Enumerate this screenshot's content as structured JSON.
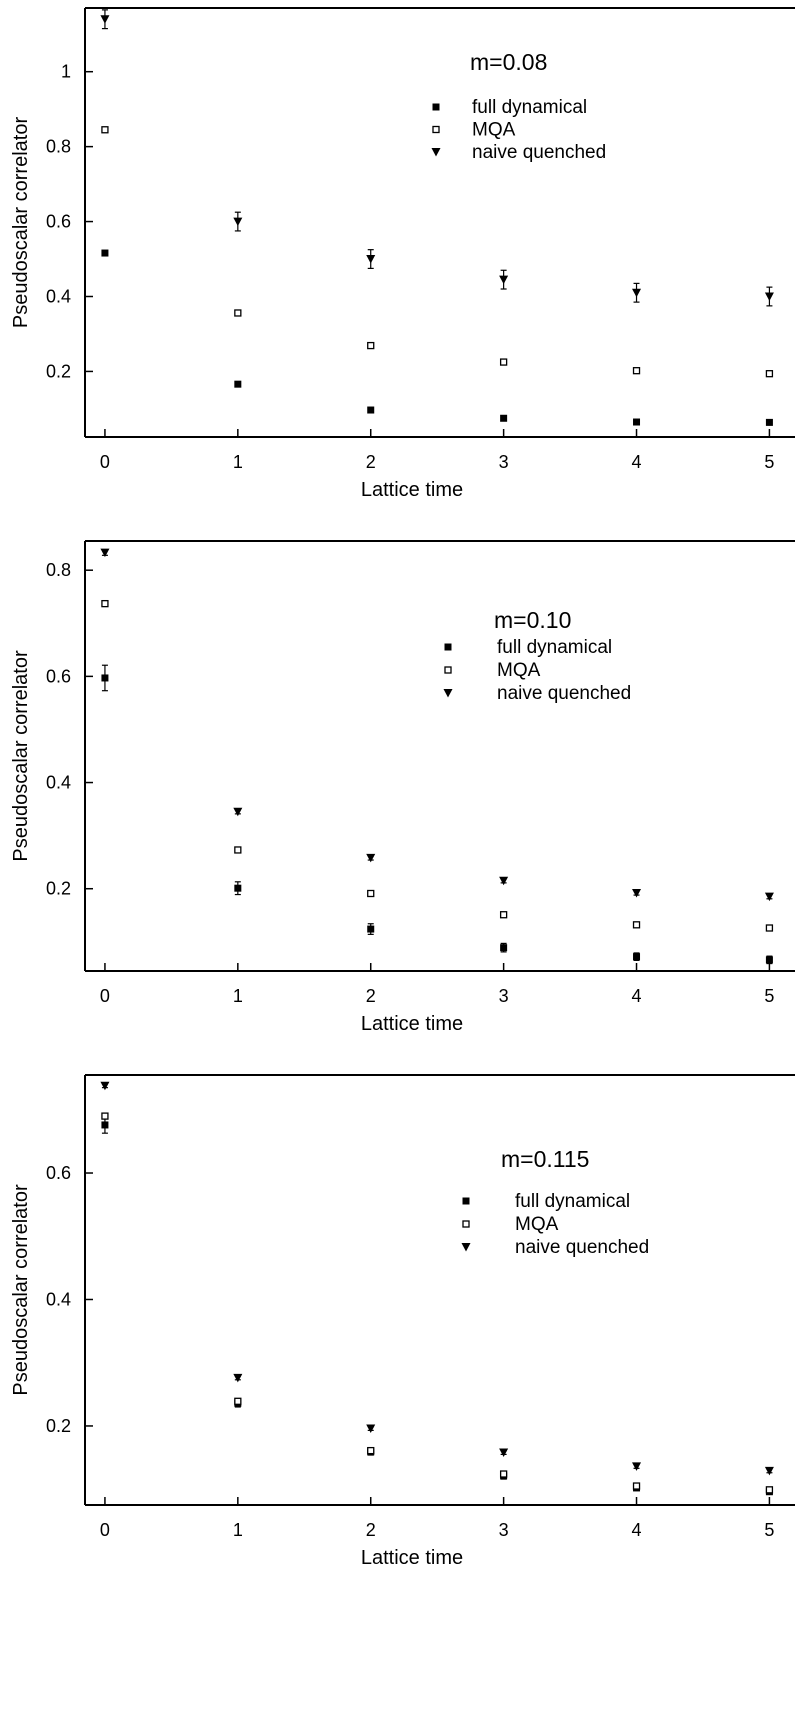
{
  "chart_data": [
    {
      "type": "scatter",
      "title": "m=0.08",
      "xlabel": "Lattice time",
      "ylabel": "Pseudoscalar correlator",
      "x": [
        0,
        1,
        2,
        3,
        4,
        5
      ],
      "xlim": [
        -0.15,
        5.2
      ],
      "ylim": [
        0.025,
        1.17
      ],
      "yticks": [
        0.2,
        0.4,
        0.6,
        0.8,
        1
      ],
      "ytick_labels": [
        "0.2",
        "0.4",
        "0.6",
        "0.8",
        "1"
      ],
      "xtick_labels": [
        "0",
        "1",
        "2",
        "3",
        "4",
        "5"
      ],
      "grid": false,
      "legend_position": "top-right",
      "series": [
        {
          "name": "full dynamical",
          "marker": "filled-square",
          "values": [
            0.516,
            0.166,
            0.097,
            0.075,
            0.065,
            0.064
          ],
          "errors": [
            0.004,
            0.003,
            0.002,
            0.002,
            0.002,
            0.002
          ]
        },
        {
          "name": "MQA",
          "marker": "open-square",
          "values": [
            0.845,
            0.356,
            0.269,
            0.225,
            0.202,
            0.194
          ],
          "errors": [
            0.003,
            0.003,
            0.003,
            0.003,
            0.003,
            0.003
          ]
        },
        {
          "name": "naive quenched",
          "marker": "filled-triangle-down",
          "values": [
            1.14,
            0.6,
            0.5,
            0.445,
            0.41,
            0.4
          ],
          "errors": [
            0.025,
            0.025,
            0.025,
            0.025,
            0.025,
            0.025
          ]
        }
      ]
    },
    {
      "type": "scatter",
      "title": "m=0.10",
      "xlabel": "Lattice time",
      "ylabel": "Pseudoscalar correlator",
      "x": [
        0,
        1,
        2,
        3,
        4,
        5
      ],
      "xlim": [
        -0.15,
        5.2
      ],
      "ylim": [
        0.045,
        0.855
      ],
      "yticks": [
        0.2,
        0.4,
        0.6,
        0.8
      ],
      "ytick_labels": [
        "0.2",
        "0.4",
        "0.6",
        "0.8"
      ],
      "xtick_labels": [
        "0",
        "1",
        "2",
        "3",
        "4",
        "5"
      ],
      "grid": false,
      "legend_position": "top-right",
      "series": [
        {
          "name": "full dynamical",
          "marker": "filled-square",
          "values": [
            0.597,
            0.201,
            0.124,
            0.089,
            0.072,
            0.066
          ],
          "errors": [
            0.024,
            0.012,
            0.01,
            0.008,
            0.007,
            0.007
          ]
        },
        {
          "name": "MQA",
          "marker": "open-square",
          "values": [
            0.737,
            0.273,
            0.191,
            0.151,
            0.132,
            0.126
          ],
          "errors": [
            0.003,
            0.003,
            0.003,
            0.003,
            0.003,
            0.003
          ]
        },
        {
          "name": "naive quenched",
          "marker": "filled-triangle-down",
          "values": [
            0.833,
            0.345,
            0.258,
            0.215,
            0.192,
            0.185
          ],
          "errors": [
            0.005,
            0.004,
            0.004,
            0.004,
            0.004,
            0.004
          ]
        }
      ]
    },
    {
      "type": "scatter",
      "title": "m=0.115",
      "xlabel": "Lattice time",
      "ylabel": "Pseudoscalar correlator",
      "x": [
        0,
        1,
        2,
        3,
        4,
        5
      ],
      "xlim": [
        -0.15,
        5.2
      ],
      "ylim": [
        0.075,
        0.755
      ],
      "yticks": [
        0.2,
        0.4,
        0.6
      ],
      "ytick_labels": [
        "0.2",
        "0.4",
        "0.6"
      ],
      "xtick_labels": [
        "0",
        "1",
        "2",
        "3",
        "4",
        "5"
      ],
      "grid": false,
      "legend_position": "top-right",
      "series": [
        {
          "name": "full dynamical",
          "marker": "filled-square",
          "values": [
            0.676,
            0.236,
            0.159,
            0.121,
            0.102,
            0.096
          ],
          "errors": [
            0.013,
            0.006,
            0.005,
            0.005,
            0.004,
            0.004
          ]
        },
        {
          "name": "MQA",
          "marker": "open-square",
          "values": [
            0.69,
            0.239,
            0.161,
            0.124,
            0.105,
            0.099
          ],
          "errors": [
            0.004,
            0.004,
            0.004,
            0.004,
            0.004,
            0.004
          ]
        },
        {
          "name": "naive quenched",
          "marker": "filled-triangle-down",
          "values": [
            0.738,
            0.276,
            0.196,
            0.158,
            0.136,
            0.129
          ],
          "errors": [
            0.003,
            0.003,
            0.003,
            0.003,
            0.003,
            0.003
          ]
        }
      ]
    }
  ]
}
